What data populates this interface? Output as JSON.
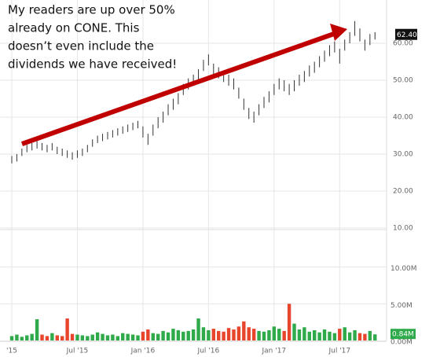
{
  "chart_data": {
    "type": "stock",
    "annotation": [
      "My readers are up over 50%",
      "already on CONE. This",
      "doesn’t even include the",
      "dividends we have received!"
    ],
    "categories": [
      "'15",
      null,
      null,
      null,
      null,
      null,
      null,
      null,
      null,
      null,
      null,
      null,
      null,
      "Jul '15",
      null,
      null,
      null,
      null,
      null,
      null,
      null,
      null,
      null,
      null,
      null,
      null,
      "Jan '16",
      null,
      null,
      null,
      null,
      null,
      null,
      null,
      null,
      null,
      null,
      null,
      null,
      "Jul '16",
      null,
      null,
      null,
      null,
      null,
      null,
      null,
      null,
      null,
      null,
      null,
      null,
      "Jan '17",
      null,
      null,
      null,
      null,
      null,
      null,
      null,
      null,
      null,
      null,
      null,
      null,
      "Jul '17",
      null,
      null,
      null,
      null,
      null,
      null,
      null
    ],
    "low": [
      27.5,
      28,
      29.5,
      30.5,
      31,
      31.5,
      31,
      30.5,
      31,
      30,
      29.5,
      29,
      28.5,
      29,
      29.5,
      30.5,
      32,
      33,
      33.5,
      34,
      34.5,
      35,
      35.5,
      36,
      36.5,
      37,
      34.5,
      32.5,
      35,
      37,
      38.5,
      40.5,
      42,
      43.5,
      46,
      47.5,
      48.5,
      50,
      52.5,
      54,
      51.5,
      50.5,
      49.5,
      48.5,
      47.5,
      45,
      42,
      39.5,
      38.5,
      40.5,
      42.5,
      44,
      46,
      47.5,
      47,
      46,
      47,
      48.5,
      49.5,
      51,
      52,
      53.5,
      55,
      56.5,
      57.5,
      54.5,
      58,
      60,
      62,
      60.5,
      58,
      59.5,
      61
    ],
    "high": [
      29.5,
      30,
      31.5,
      32.5,
      33,
      33.5,
      33,
      32.5,
      33,
      32,
      31.5,
      31,
      30.5,
      31,
      31.5,
      32.5,
      34,
      35,
      35.5,
      36,
      36.5,
      37,
      37.5,
      38,
      38.5,
      39,
      37.5,
      35.5,
      38,
      40,
      41.5,
      43.5,
      45,
      46.5,
      49,
      50.5,
      51.5,
      53,
      55.5,
      57,
      54.5,
      53.5,
      52.5,
      51.5,
      50.5,
      48,
      45,
      42.5,
      41.5,
      43.5,
      45.5,
      47,
      49,
      50.5,
      50,
      49,
      50,
      51.5,
      52.5,
      54,
      55,
      56.5,
      58,
      59.5,
      60.5,
      58.5,
      61,
      63,
      66,
      64,
      61,
      62.5,
      63
    ],
    "volume": [
      0.6,
      0.8,
      0.5,
      0.7,
      0.9,
      2.9,
      0.8,
      0.6,
      1.0,
      0.7,
      0.6,
      3.0,
      0.9,
      0.8,
      0.7,
      0.6,
      0.8,
      1.1,
      0.9,
      0.7,
      0.8,
      0.6,
      1.0,
      0.9,
      0.8,
      0.7,
      1.2,
      1.5,
      1.0,
      0.9,
      1.3,
      1.1,
      1.6,
      1.4,
      1.2,
      1.3,
      1.5,
      3.0,
      1.8,
      1.4,
      1.6,
      1.3,
      1.2,
      1.7,
      1.5,
      1.9,
      2.6,
      1.8,
      1.6,
      1.3,
      1.2,
      1.4,
      1.9,
      1.6,
      1.3,
      5.0,
      2.3,
      1.5,
      1.8,
      1.2,
      1.4,
      1.1,
      1.5,
      1.2,
      1.0,
      1.6,
      1.8,
      1.1,
      1.4,
      1.0,
      0.9,
      1.3,
      0.84
    ],
    "up_color": "#2faa4a",
    "down_color": "#e8462c",
    "price_color": "#333333",
    "ylim": [
      10,
      70
    ],
    "yticks": [
      {
        "value": 10,
        "label": "10.00"
      },
      {
        "value": 20,
        "label": "20.00"
      },
      {
        "value": 30,
        "label": "30.00"
      },
      {
        "value": 40,
        "label": "40.00"
      },
      {
        "value": 50,
        "label": "50.00"
      },
      {
        "value": 60,
        "label": "60.00"
      }
    ],
    "current_price": {
      "value": 62.4,
      "label": "62.40"
    },
    "volume_ylim": [
      0,
      15
    ],
    "volume_ticks": [
      {
        "value": 0,
        "label": "0.00M"
      },
      {
        "value": 5,
        "label": "5.00M"
      },
      {
        "value": 10,
        "label": "10.00M"
      }
    ],
    "current_volume": {
      "value": 0.84,
      "label": "0.84M"
    },
    "grid": true
  }
}
